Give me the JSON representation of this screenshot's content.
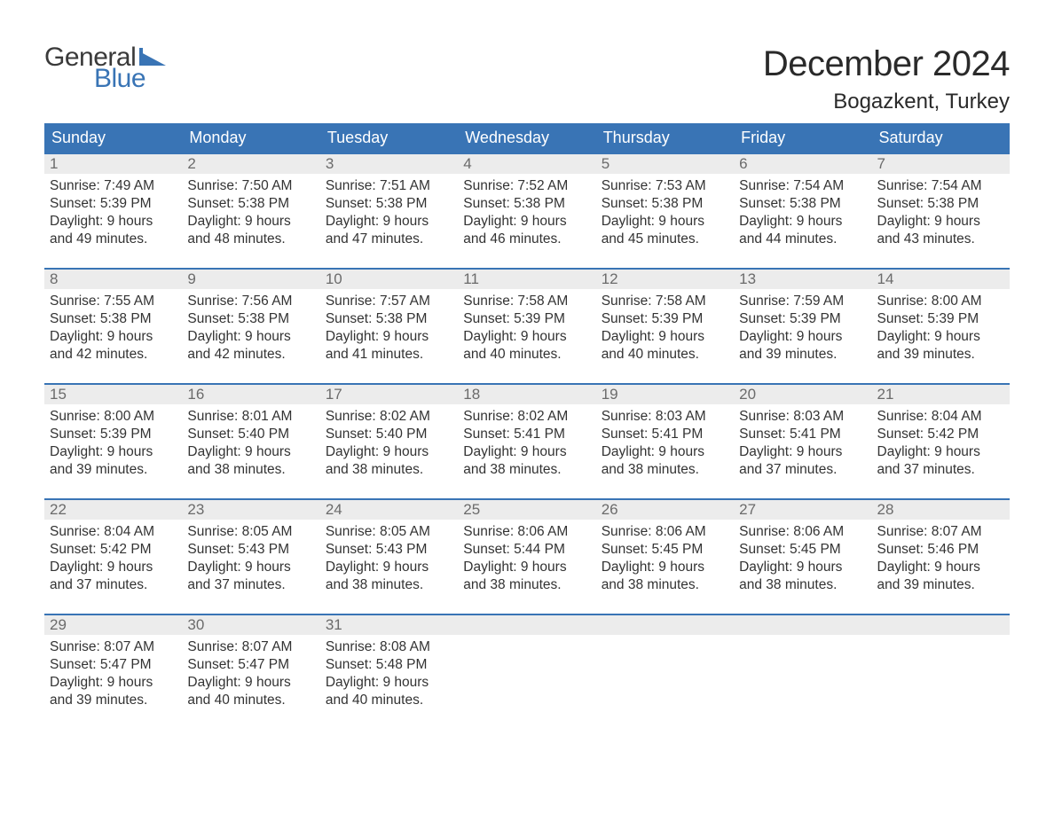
{
  "brand": {
    "line1": "General",
    "line2": "Blue",
    "accent_color": "#3974b5"
  },
  "header": {
    "month_title": "December 2024",
    "location": "Bogazkent, Turkey"
  },
  "colors": {
    "header_bar": "#3974b5",
    "daynum_bg": "#ececec",
    "text": "#333333",
    "daynum_text": "#6b6b6b",
    "weekday_text": "#ffffff",
    "week_border": "#3974b5",
    "background": "#ffffff"
  },
  "typography": {
    "month_title_fontsize": 40,
    "location_fontsize": 24,
    "weekday_fontsize": 18,
    "daynum_fontsize": 17,
    "body_fontsize": 15.5,
    "logo_fontsize": 30
  },
  "weekdays": [
    "Sunday",
    "Monday",
    "Tuesday",
    "Wednesday",
    "Thursday",
    "Friday",
    "Saturday"
  ],
  "weeks": [
    [
      {
        "day": "1",
        "sunrise": "Sunrise: 7:49 AM",
        "sunset": "Sunset: 5:39 PM",
        "dl1": "Daylight: 9 hours",
        "dl2": "and 49 minutes."
      },
      {
        "day": "2",
        "sunrise": "Sunrise: 7:50 AM",
        "sunset": "Sunset: 5:38 PM",
        "dl1": "Daylight: 9 hours",
        "dl2": "and 48 minutes."
      },
      {
        "day": "3",
        "sunrise": "Sunrise: 7:51 AM",
        "sunset": "Sunset: 5:38 PM",
        "dl1": "Daylight: 9 hours",
        "dl2": "and 47 minutes."
      },
      {
        "day": "4",
        "sunrise": "Sunrise: 7:52 AM",
        "sunset": "Sunset: 5:38 PM",
        "dl1": "Daylight: 9 hours",
        "dl2": "and 46 minutes."
      },
      {
        "day": "5",
        "sunrise": "Sunrise: 7:53 AM",
        "sunset": "Sunset: 5:38 PM",
        "dl1": "Daylight: 9 hours",
        "dl2": "and 45 minutes."
      },
      {
        "day": "6",
        "sunrise": "Sunrise: 7:54 AM",
        "sunset": "Sunset: 5:38 PM",
        "dl1": "Daylight: 9 hours",
        "dl2": "and 44 minutes."
      },
      {
        "day": "7",
        "sunrise": "Sunrise: 7:54 AM",
        "sunset": "Sunset: 5:38 PM",
        "dl1": "Daylight: 9 hours",
        "dl2": "and 43 minutes."
      }
    ],
    [
      {
        "day": "8",
        "sunrise": "Sunrise: 7:55 AM",
        "sunset": "Sunset: 5:38 PM",
        "dl1": "Daylight: 9 hours",
        "dl2": "and 42 minutes."
      },
      {
        "day": "9",
        "sunrise": "Sunrise: 7:56 AM",
        "sunset": "Sunset: 5:38 PM",
        "dl1": "Daylight: 9 hours",
        "dl2": "and 42 minutes."
      },
      {
        "day": "10",
        "sunrise": "Sunrise: 7:57 AM",
        "sunset": "Sunset: 5:38 PM",
        "dl1": "Daylight: 9 hours",
        "dl2": "and 41 minutes."
      },
      {
        "day": "11",
        "sunrise": "Sunrise: 7:58 AM",
        "sunset": "Sunset: 5:39 PM",
        "dl1": "Daylight: 9 hours",
        "dl2": "and 40 minutes."
      },
      {
        "day": "12",
        "sunrise": "Sunrise: 7:58 AM",
        "sunset": "Sunset: 5:39 PM",
        "dl1": "Daylight: 9 hours",
        "dl2": "and 40 minutes."
      },
      {
        "day": "13",
        "sunrise": "Sunrise: 7:59 AM",
        "sunset": "Sunset: 5:39 PM",
        "dl1": "Daylight: 9 hours",
        "dl2": "and 39 minutes."
      },
      {
        "day": "14",
        "sunrise": "Sunrise: 8:00 AM",
        "sunset": "Sunset: 5:39 PM",
        "dl1": "Daylight: 9 hours",
        "dl2": "and 39 minutes."
      }
    ],
    [
      {
        "day": "15",
        "sunrise": "Sunrise: 8:00 AM",
        "sunset": "Sunset: 5:39 PM",
        "dl1": "Daylight: 9 hours",
        "dl2": "and 39 minutes."
      },
      {
        "day": "16",
        "sunrise": "Sunrise: 8:01 AM",
        "sunset": "Sunset: 5:40 PM",
        "dl1": "Daylight: 9 hours",
        "dl2": "and 38 minutes."
      },
      {
        "day": "17",
        "sunrise": "Sunrise: 8:02 AM",
        "sunset": "Sunset: 5:40 PM",
        "dl1": "Daylight: 9 hours",
        "dl2": "and 38 minutes."
      },
      {
        "day": "18",
        "sunrise": "Sunrise: 8:02 AM",
        "sunset": "Sunset: 5:41 PM",
        "dl1": "Daylight: 9 hours",
        "dl2": "and 38 minutes."
      },
      {
        "day": "19",
        "sunrise": "Sunrise: 8:03 AM",
        "sunset": "Sunset: 5:41 PM",
        "dl1": "Daylight: 9 hours",
        "dl2": "and 38 minutes."
      },
      {
        "day": "20",
        "sunrise": "Sunrise: 8:03 AM",
        "sunset": "Sunset: 5:41 PM",
        "dl1": "Daylight: 9 hours",
        "dl2": "and 37 minutes."
      },
      {
        "day": "21",
        "sunrise": "Sunrise: 8:04 AM",
        "sunset": "Sunset: 5:42 PM",
        "dl1": "Daylight: 9 hours",
        "dl2": "and 37 minutes."
      }
    ],
    [
      {
        "day": "22",
        "sunrise": "Sunrise: 8:04 AM",
        "sunset": "Sunset: 5:42 PM",
        "dl1": "Daylight: 9 hours",
        "dl2": "and 37 minutes."
      },
      {
        "day": "23",
        "sunrise": "Sunrise: 8:05 AM",
        "sunset": "Sunset: 5:43 PM",
        "dl1": "Daylight: 9 hours",
        "dl2": "and 37 minutes."
      },
      {
        "day": "24",
        "sunrise": "Sunrise: 8:05 AM",
        "sunset": "Sunset: 5:43 PM",
        "dl1": "Daylight: 9 hours",
        "dl2": "and 38 minutes."
      },
      {
        "day": "25",
        "sunrise": "Sunrise: 8:06 AM",
        "sunset": "Sunset: 5:44 PM",
        "dl1": "Daylight: 9 hours",
        "dl2": "and 38 minutes."
      },
      {
        "day": "26",
        "sunrise": "Sunrise: 8:06 AM",
        "sunset": "Sunset: 5:45 PM",
        "dl1": "Daylight: 9 hours",
        "dl2": "and 38 minutes."
      },
      {
        "day": "27",
        "sunrise": "Sunrise: 8:06 AM",
        "sunset": "Sunset: 5:45 PM",
        "dl1": "Daylight: 9 hours",
        "dl2": "and 38 minutes."
      },
      {
        "day": "28",
        "sunrise": "Sunrise: 8:07 AM",
        "sunset": "Sunset: 5:46 PM",
        "dl1": "Daylight: 9 hours",
        "dl2": "and 39 minutes."
      }
    ],
    [
      {
        "day": "29",
        "sunrise": "Sunrise: 8:07 AM",
        "sunset": "Sunset: 5:47 PM",
        "dl1": "Daylight: 9 hours",
        "dl2": "and 39 minutes."
      },
      {
        "day": "30",
        "sunrise": "Sunrise: 8:07 AM",
        "sunset": "Sunset: 5:47 PM",
        "dl1": "Daylight: 9 hours",
        "dl2": "and 40 minutes."
      },
      {
        "day": "31",
        "sunrise": "Sunrise: 8:08 AM",
        "sunset": "Sunset: 5:48 PM",
        "dl1": "Daylight: 9 hours",
        "dl2": "and 40 minutes."
      },
      {
        "empty": true
      },
      {
        "empty": true
      },
      {
        "empty": true
      },
      {
        "empty": true
      }
    ]
  ]
}
